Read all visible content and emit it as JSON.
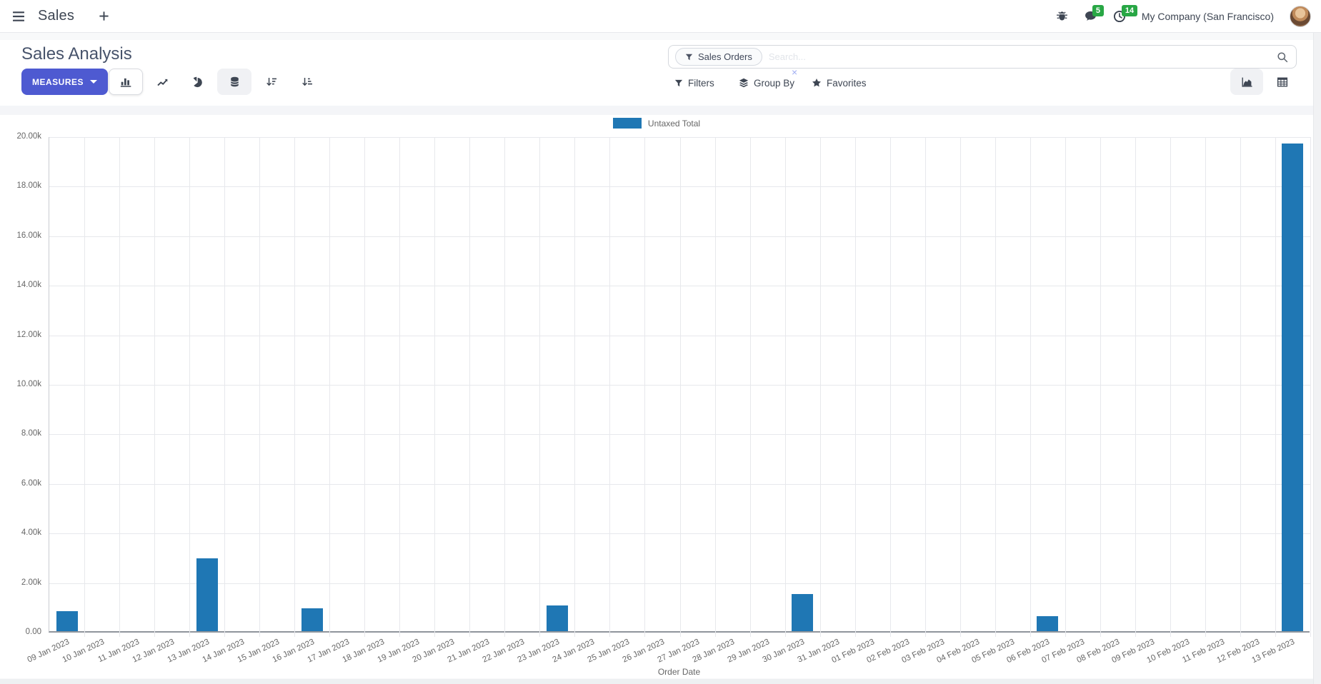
{
  "navbar": {
    "brand": "Sales",
    "messages_badge": "5",
    "activities_badge": "14",
    "company": "My Company (San Francisco)"
  },
  "control_panel": {
    "title": "Sales Analysis",
    "measures_label": "MEASURES",
    "search": {
      "facet": "Sales Orders",
      "facet_remove": "×",
      "placeholder": "Search..."
    },
    "filters_label": "Filters",
    "groupby_label": "Group By",
    "favorites_label": "Favorites"
  },
  "colors": {
    "accent": "#4e5ad1",
    "bar": "#1f77b4",
    "badge_green": "#28a745"
  },
  "chart_data": {
    "type": "bar",
    "title": "",
    "xlabel": "Order Date",
    "ylabel": "",
    "legend_position": "top",
    "grid": true,
    "ylim": [
      0,
      20000
    ],
    "y_ticks": [
      0,
      2000,
      4000,
      6000,
      8000,
      10000,
      12000,
      14000,
      16000,
      18000,
      20000
    ],
    "y_tick_labels": [
      "0.00",
      "2.00k",
      "4.00k",
      "6.00k",
      "8.00k",
      "10.00k",
      "12.00k",
      "14.00k",
      "16.00k",
      "18.00k",
      "20.00k"
    ],
    "categories": [
      "09 Jan 2023",
      "10 Jan 2023",
      "11 Jan 2023",
      "12 Jan 2023",
      "13 Jan 2023",
      "14 Jan 2023",
      "15 Jan 2023",
      "16 Jan 2023",
      "17 Jan 2023",
      "18 Jan 2023",
      "19 Jan 2023",
      "20 Jan 2023",
      "21 Jan 2023",
      "22 Jan 2023",
      "23 Jan 2023",
      "24 Jan 2023",
      "25 Jan 2023",
      "26 Jan 2023",
      "27 Jan 2023",
      "28 Jan 2023",
      "29 Jan 2023",
      "30 Jan 2023",
      "31 Jan 2023",
      "01 Feb 2023",
      "02 Feb 2023",
      "03 Feb 2023",
      "04 Feb 2023",
      "05 Feb 2023",
      "06 Feb 2023",
      "07 Feb 2023",
      "08 Feb 2023",
      "09 Feb 2023",
      "10 Feb 2023",
      "11 Feb 2023",
      "12 Feb 2023",
      "13 Feb 2023"
    ],
    "series": [
      {
        "name": "Untaxed Total",
        "color": "#1f77b4",
        "values": [
          810,
          0,
          0,
          0,
          2930,
          0,
          0,
          930,
          0,
          0,
          0,
          0,
          0,
          0,
          1040,
          0,
          0,
          0,
          0,
          0,
          0,
          1500,
          0,
          0,
          0,
          0,
          0,
          0,
          610,
          0,
          0,
          0,
          0,
          0,
          0,
          19680
        ]
      }
    ]
  }
}
